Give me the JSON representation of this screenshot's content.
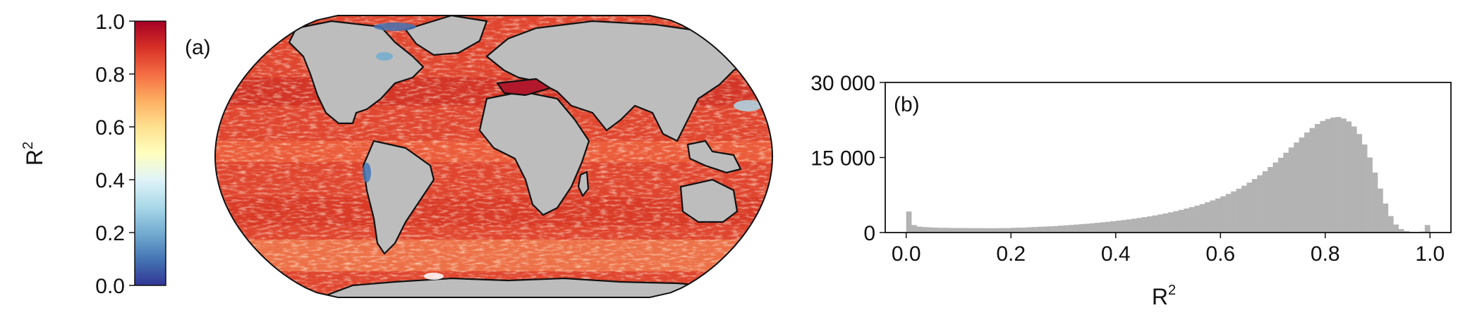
{
  "colorbar": {
    "label": "R",
    "label_sup": "2",
    "ticks": [
      "1.0",
      "0.8",
      "0.6",
      "0.4",
      "0.2",
      "0.0"
    ],
    "range": [
      0.0,
      1.0
    ],
    "colormap": [
      "#313695",
      "#4575b4",
      "#74add1",
      "#abd9e9",
      "#e0f3f8",
      "#ffffbf",
      "#fee090",
      "#fdae61",
      "#f46d43",
      "#d73027",
      "#a50026"
    ]
  },
  "panel_a": {
    "label": "(a)"
  },
  "panel_b": {
    "label": "(b)"
  },
  "colors": {
    "land": "#bdbdbd",
    "ocean_main": "#e34a33",
    "hist_bar": "#b3b3b3",
    "axis": "#111111"
  },
  "chart_data": [
    {
      "type": "map",
      "panel": "(a)",
      "variable": "R²",
      "color_range": [
        0.0,
        1.0
      ],
      "projection": "robinson"
    },
    {
      "type": "bar",
      "panel": "(b)",
      "xlabel": "R",
      "xlabel_sup": "2",
      "ylabel": "",
      "xlim": [
        -0.04,
        1.04
      ],
      "ylim": [
        0,
        30000
      ],
      "xticks": [
        "0.0",
        "0.2",
        "0.4",
        "0.6",
        "0.8",
        "1.0"
      ],
      "yticks": [
        "0",
        "15 000",
        "30 000"
      ],
      "bin_width": 0.01,
      "bin_start": 0.0,
      "values": [
        4200,
        1500,
        1200,
        1100,
        1050,
        1000,
        950,
        950,
        920,
        900,
        900,
        900,
        880,
        880,
        880,
        870,
        870,
        880,
        900,
        900,
        950,
        980,
        1000,
        1050,
        1100,
        1150,
        1200,
        1250,
        1300,
        1380,
        1450,
        1520,
        1600,
        1680,
        1760,
        1850,
        1950,
        2050,
        2150,
        2260,
        2380,
        2500,
        2630,
        2770,
        2920,
        3080,
        3250,
        3430,
        3620,
        3830,
        4050,
        4280,
        4530,
        4800,
        5080,
        5380,
        5700,
        6050,
        6420,
        6820,
        7250,
        7720,
        8220,
        8760,
        9350,
        9990,
        10700,
        11450,
        12250,
        13100,
        14000,
        14950,
        15950,
        17000,
        18000,
        19000,
        20000,
        20900,
        21700,
        22300,
        22700,
        23000,
        23100,
        22800,
        22200,
        21200,
        19700,
        17600,
        15000,
        12000,
        8800,
        5800,
        3300,
        1600,
        700,
        300,
        150,
        100,
        200,
        1500
      ]
    }
  ]
}
